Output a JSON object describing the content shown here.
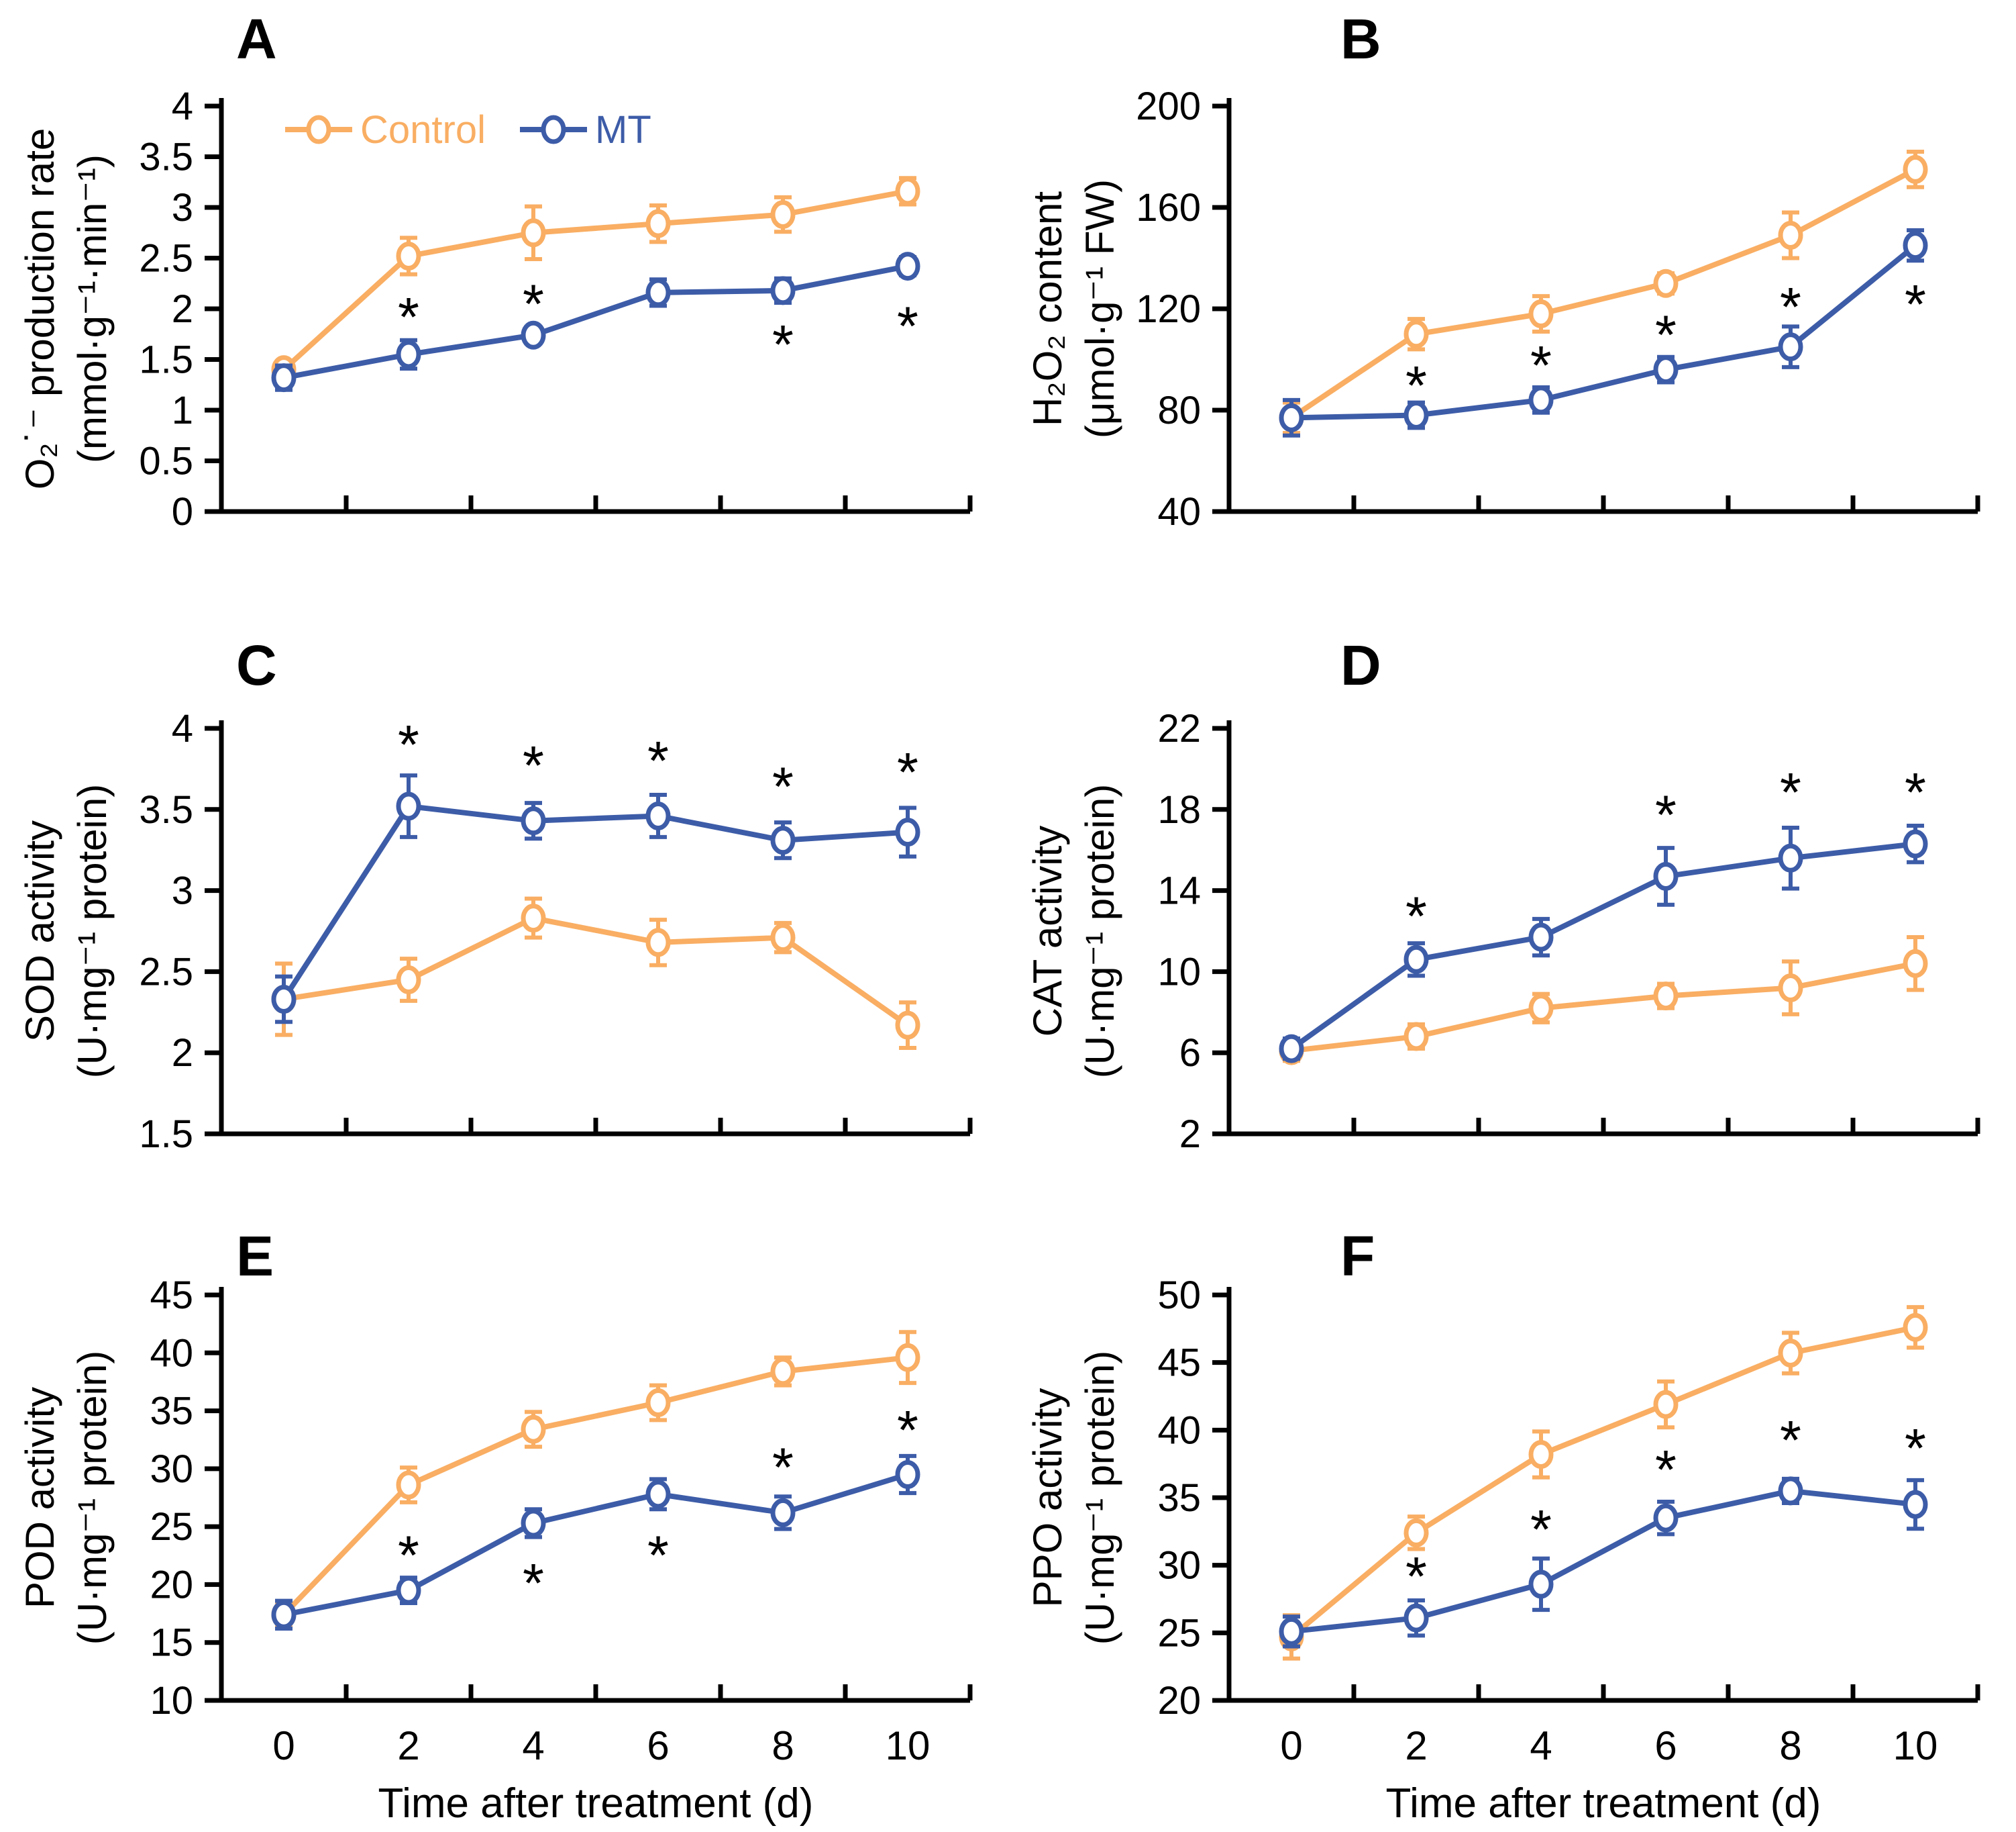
{
  "figure": {
    "description": "Six-panel line figure comparing Control and MT treatments over time with standard-error bars and significance asterisks",
    "significance_marker": "*",
    "colors": {
      "control": "#F9AE63",
      "mt": "#3D5CA8",
      "axis": "#000000",
      "text": "#000000",
      "marker_fill": "#FFFFFF",
      "background": "#FFFFFF"
    }
  },
  "legend": {
    "items": [
      {
        "label": "Control",
        "series": "control"
      },
      {
        "label": "MT",
        "series": "mt"
      }
    ]
  },
  "x_axis": {
    "title": "Time after treatment (d)",
    "values": [
      0,
      2,
      4,
      6,
      8,
      10
    ],
    "tick_labels": [
      "0",
      "2",
      "4",
      "6",
      "8",
      "10"
    ]
  },
  "chart_data": [
    {
      "panel": "A",
      "type": "line",
      "ylabel_line1": "O₂˙⁻ production rate",
      "ylabel_line2": "(mmol·g⁻¹·min⁻¹)",
      "ylim": [
        0,
        4
      ],
      "yticks": [
        0,
        0.5,
        1,
        1.5,
        2,
        2.5,
        3,
        3.5,
        4
      ],
      "x": [
        0,
        2,
        4,
        6,
        8,
        10
      ],
      "series": [
        {
          "name": "Control",
          "color": "control",
          "values": [
            1.4,
            2.52,
            2.75,
            2.84,
            2.93,
            3.16
          ],
          "errors": [
            0.08,
            0.18,
            0.26,
            0.18,
            0.17,
            0.13
          ]
        },
        {
          "name": "MT",
          "color": "mt",
          "values": [
            1.32,
            1.55,
            1.74,
            2.16,
            2.18,
            2.42
          ],
          "errors": [
            0.12,
            0.14,
            0.08,
            0.13,
            0.12,
            0.09
          ]
        }
      ],
      "asterisks": [
        {
          "x": 2,
          "y": 1.95
        },
        {
          "x": 4,
          "y": 2.08
        },
        {
          "x": 8,
          "y": 1.68
        },
        {
          "x": 10,
          "y": 1.86
        }
      ],
      "show_legend": true
    },
    {
      "panel": "B",
      "type": "line",
      "ylabel_line1": "H₂O₂ content",
      "ylabel_line2": "(μmol·g⁻¹ FW)",
      "ylim": [
        40,
        200
      ],
      "yticks": [
        40,
        80,
        120,
        160,
        200
      ],
      "x": [
        0,
        2,
        4,
        6,
        8,
        10
      ],
      "series": [
        {
          "name": "Control",
          "color": "control",
          "values": [
            77,
            110,
            118,
            130,
            149,
            175
          ],
          "errors": [
            6,
            6,
            7,
            4,
            9,
            7
          ]
        },
        {
          "name": "MT",
          "color": "mt",
          "values": [
            77,
            78,
            84,
            96,
            105,
            145
          ],
          "errors": [
            7,
            5,
            5,
            5,
            8,
            6
          ]
        }
      ],
      "asterisks": [
        {
          "x": 2,
          "y": 91
        },
        {
          "x": 4,
          "y": 99
        },
        {
          "x": 6,
          "y": 111
        },
        {
          "x": 8,
          "y": 122
        },
        {
          "x": 10,
          "y": 123
        }
      ],
      "show_legend": false
    },
    {
      "panel": "C",
      "type": "line",
      "ylabel_line1": "SOD activity",
      "ylabel_line2": "(U·mg⁻¹ protein)",
      "ylim": [
        1.5,
        4
      ],
      "yticks": [
        1.5,
        2,
        2.5,
        3,
        3.5,
        4
      ],
      "x": [
        0,
        2,
        4,
        6,
        8,
        10
      ],
      "series": [
        {
          "name": "Control",
          "color": "control",
          "values": [
            2.33,
            2.45,
            2.83,
            2.68,
            2.71,
            2.17
          ],
          "errors": [
            0.22,
            0.13,
            0.12,
            0.14,
            0.09,
            0.14
          ]
        },
        {
          "name": "MT",
          "color": "mt",
          "values": [
            2.33,
            3.52,
            3.43,
            3.46,
            3.31,
            3.36
          ],
          "errors": [
            0.14,
            0.19,
            0.11,
            0.13,
            0.11,
            0.15
          ]
        }
      ],
      "asterisks": [
        {
          "x": 2,
          "y": 3.92
        },
        {
          "x": 4,
          "y": 3.79
        },
        {
          "x": 6,
          "y": 3.82
        },
        {
          "x": 8,
          "y": 3.66
        },
        {
          "x": 10,
          "y": 3.75
        }
      ],
      "show_legend": false
    },
    {
      "panel": "D",
      "type": "line",
      "ylabel_line1": "CAT activity",
      "ylabel_line2": "(U·mg⁻¹ protein)",
      "ylim": [
        2,
        22
      ],
      "yticks": [
        2,
        6,
        10,
        14,
        18,
        22
      ],
      "x": [
        0,
        2,
        4,
        6,
        8,
        10
      ],
      "series": [
        {
          "name": "Control",
          "color": "control",
          "values": [
            6.1,
            6.8,
            8.2,
            8.8,
            9.2,
            10.4
          ],
          "errors": [
            0.5,
            0.6,
            0.7,
            0.6,
            1.3,
            1.3
          ]
        },
        {
          "name": "MT",
          "color": "mt",
          "values": [
            6.2,
            10.6,
            11.7,
            14.7,
            15.6,
            16.3
          ],
          "errors": [
            0.5,
            0.8,
            0.9,
            1.4,
            1.5,
            0.9
          ]
        }
      ],
      "asterisks": [
        {
          "x": 2,
          "y": 12.9
        },
        {
          "x": 6,
          "y": 17.9
        },
        {
          "x": 8,
          "y": 19.0
        },
        {
          "x": 10,
          "y": 19.0
        }
      ],
      "show_legend": false
    },
    {
      "panel": "E",
      "type": "line",
      "ylabel_line1": "POD activity",
      "ylabel_line2": "(U·mg⁻¹ protein)",
      "ylim": [
        10,
        45
      ],
      "yticks": [
        10,
        15,
        20,
        25,
        30,
        35,
        40,
        45
      ],
      "x": [
        0,
        2,
        4,
        6,
        8,
        10
      ],
      "series": [
        {
          "name": "Control",
          "color": "control",
          "values": [
            17.4,
            28.6,
            33.4,
            35.7,
            38.4,
            39.6
          ],
          "errors": [
            1.1,
            1.5,
            1.5,
            1.5,
            1.2,
            2.2
          ]
        },
        {
          "name": "MT",
          "color": "mt",
          "values": [
            17.4,
            19.5,
            25.3,
            27.8,
            26.2,
            29.5
          ],
          "errors": [
            1.2,
            1.1,
            1.2,
            1.3,
            1.4,
            1.6
          ]
        }
      ],
      "asterisks": [
        {
          "x": 2,
          "y": 22.8
        },
        {
          "x": 4,
          "y": 20.4
        },
        {
          "x": 6,
          "y": 22.8
        },
        {
          "x": 8,
          "y": 30.4
        },
        {
          "x": 10,
          "y": 33.6
        }
      ],
      "show_legend": false
    },
    {
      "panel": "F",
      "type": "line",
      "ylabel_line1": "PPO activity",
      "ylabel_line2": "(U·mg⁻¹ protein)",
      "ylim": [
        20,
        50
      ],
      "yticks": [
        20,
        25,
        30,
        35,
        40,
        45,
        50
      ],
      "x": [
        0,
        2,
        4,
        6,
        8,
        10
      ],
      "series": [
        {
          "name": "Control",
          "color": "control",
          "values": [
            24.7,
            32.4,
            38.2,
            41.9,
            45.7,
            47.6
          ],
          "errors": [
            1.6,
            1.2,
            1.7,
            1.7,
            1.5,
            1.5
          ]
        },
        {
          "name": "MT",
          "color": "mt",
          "values": [
            25.1,
            26.1,
            28.6,
            33.5,
            35.5,
            34.5
          ],
          "errors": [
            1.1,
            1.3,
            1.9,
            1.2,
            0.9,
            1.8
          ]
        }
      ],
      "asterisks": [
        {
          "x": 2,
          "y": 29.4
        },
        {
          "x": 4,
          "y": 32.9
        },
        {
          "x": 6,
          "y": 37.3
        },
        {
          "x": 8,
          "y": 39.5
        },
        {
          "x": 10,
          "y": 38.9
        }
      ],
      "show_legend": false
    }
  ]
}
